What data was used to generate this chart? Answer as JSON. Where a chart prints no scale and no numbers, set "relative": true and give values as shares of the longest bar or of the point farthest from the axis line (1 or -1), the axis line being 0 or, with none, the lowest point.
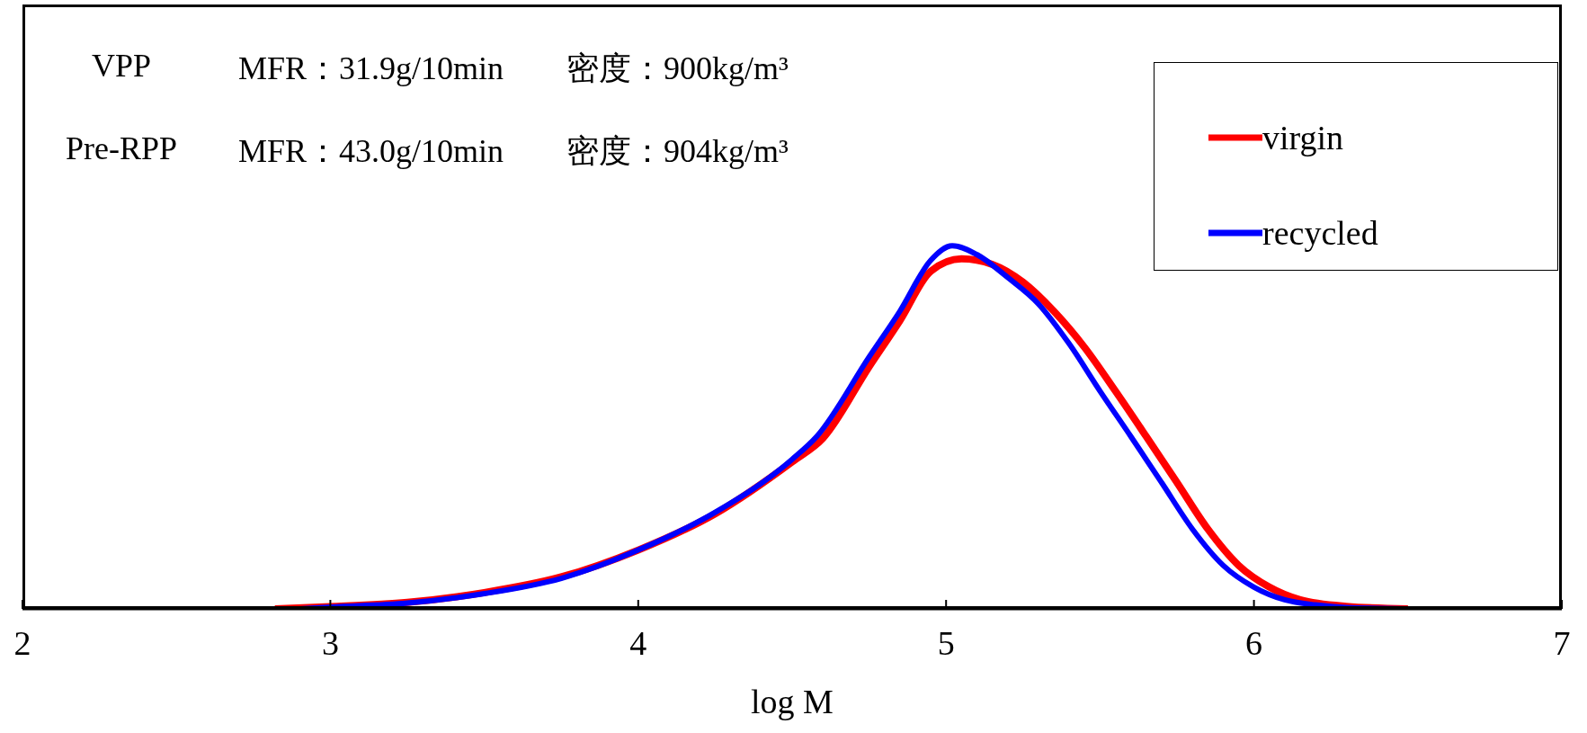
{
  "chart_data": {
    "type": "line",
    "xlabel": "log M",
    "relative": true,
    "xlim": [
      2,
      7
    ],
    "xticks": [
      2,
      3,
      4,
      5,
      6,
      7
    ],
    "legend": "top right",
    "marker": "none",
    "line_style": "solid",
    "annotations": [
      "VPP",
      "MFR：31.9g/10min",
      "密度：900kg/m³",
      "Pre-RPP",
      "MFR：43.0g/10min",
      "密度：904kg/m³"
    ],
    "series": [
      {
        "name": "virgin",
        "color": "#ff0000",
        "x": [
          2.82,
          3.0,
          3.25,
          3.5,
          3.75,
          4.0,
          4.25,
          4.5,
          4.6,
          4.75,
          4.85,
          4.95,
          5.05,
          5.15,
          5.25,
          5.35,
          5.45,
          5.55,
          5.65,
          5.75,
          5.85,
          5.95,
          6.05,
          6.15,
          6.3,
          6.5
        ],
        "values": [
          0,
          0.006,
          0.018,
          0.045,
          0.088,
          0.162,
          0.262,
          0.405,
          0.47,
          0.667,
          0.794,
          0.93,
          0.964,
          0.949,
          0.9,
          0.82,
          0.72,
          0.6,
          0.475,
          0.348,
          0.22,
          0.12,
          0.06,
          0.025,
          0.007,
          0
        ]
      },
      {
        "name": "recycled",
        "color": "#0000ff",
        "x": [
          2.9,
          3.0,
          3.25,
          3.5,
          3.75,
          4.0,
          4.25,
          4.5,
          4.58,
          4.75,
          4.85,
          4.95,
          5.02,
          5.1,
          5.2,
          5.3,
          5.4,
          5.5,
          5.6,
          5.7,
          5.8,
          5.9,
          6.0,
          6.1,
          6.2,
          6.3,
          6.55
        ],
        "values": [
          0,
          0.005,
          0.016,
          0.042,
          0.084,
          0.162,
          0.266,
          0.412,
          0.475,
          0.694,
          0.82,
          0.96,
          1,
          0.976,
          0.913,
          0.84,
          0.73,
          0.6,
          0.475,
          0.348,
          0.22,
          0.12,
          0.06,
          0.025,
          0.011,
          0.004,
          0
        ]
      }
    ]
  }
}
